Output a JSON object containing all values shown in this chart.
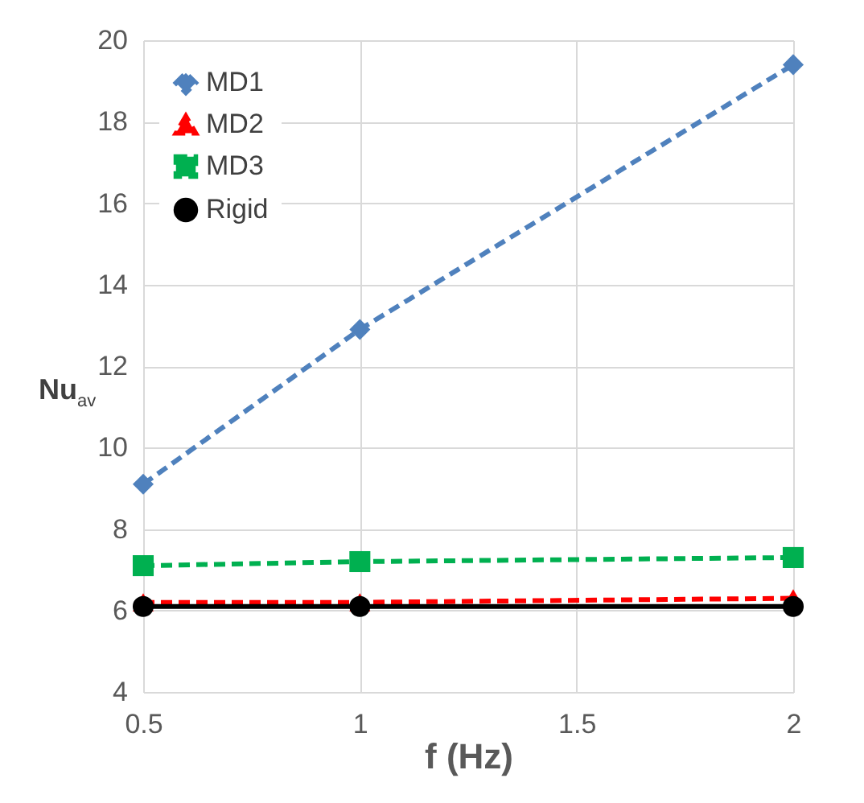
{
  "chart_data": {
    "type": "line",
    "xlabel": "f (Hz)",
    "ylabel": "Nu$_{av}$",
    "x": [
      0.5,
      1,
      2
    ],
    "xlim": [
      0.5,
      2
    ],
    "xticks": [
      0.5,
      {
        "value": 1,
        "label": "1"
      },
      1.5,
      {
        "value": 2,
        "label": "2"
      }
    ],
    "ylim": [
      4,
      20
    ],
    "yticks": [
      4,
      6,
      8,
      10,
      12,
      14,
      16,
      18,
      20
    ],
    "grid": true,
    "legend": "top left",
    "series": [
      {
        "name": "MD1",
        "color": "#4f81bd",
        "marker": "diamond",
        "line_style": "dashed",
        "values": [
          9.1,
          12.9,
          19.4
        ]
      },
      {
        "name": "MD2",
        "color": "#ff0000",
        "marker": "triangle",
        "line_style": "dashed",
        "values": [
          6.2,
          6.2,
          6.3
        ]
      },
      {
        "name": "MD3",
        "color": "#00b050",
        "marker": "square",
        "line_style": "dashed",
        "values": [
          7.1,
          7.2,
          7.3
        ]
      },
      {
        "name": "Rigid",
        "color": "#000000",
        "marker": "circle",
        "line_style": "solid",
        "values": [
          6.1,
          6.1,
          6.1
        ]
      }
    ]
  }
}
